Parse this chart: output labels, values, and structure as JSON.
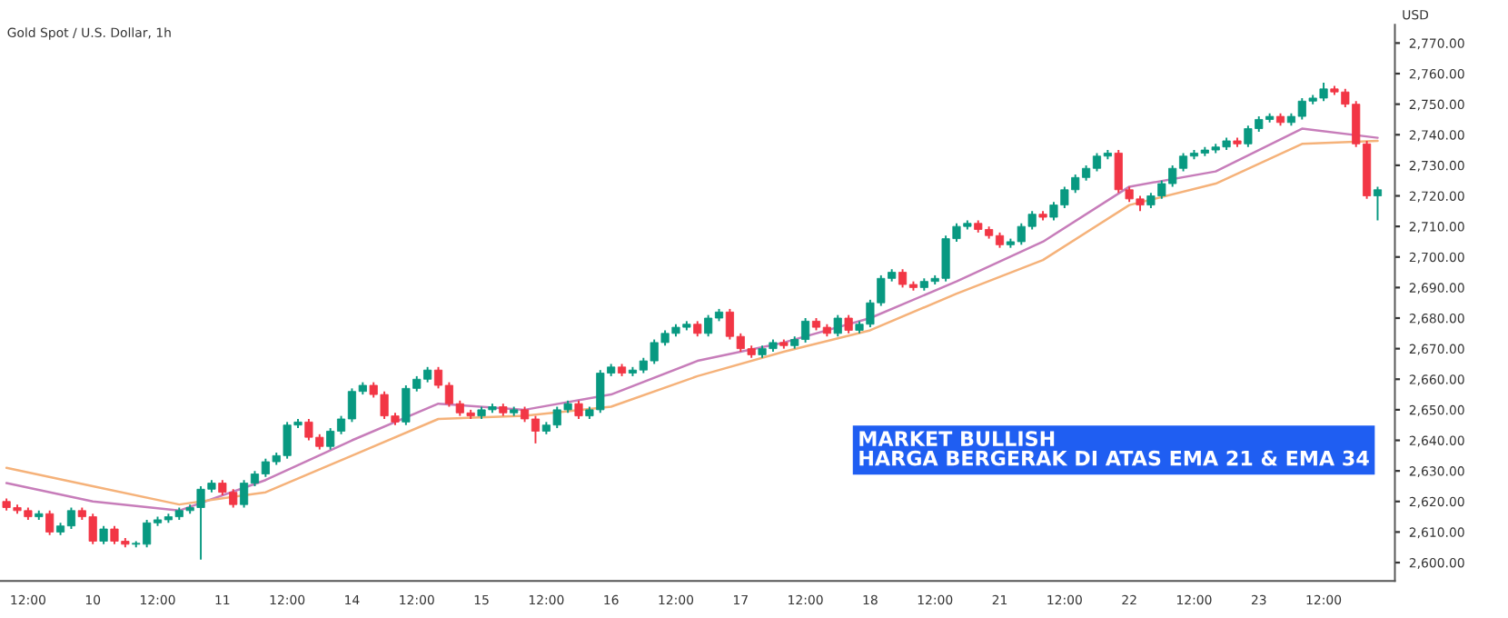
{
  "chart_data": {
    "type": "candlestick",
    "title": "Gold Spot / U.S. Dollar, 1h",
    "ylabel": "USD",
    "categories": [
      null,
      null,
      "12:00",
      null,
      null,
      null,
      null,
      null,
      "10",
      null,
      null,
      null,
      null,
      null,
      "12:00",
      null,
      null,
      null,
      null,
      null,
      "11",
      null,
      null,
      null,
      null,
      null,
      "12:00",
      null,
      null,
      null,
      null,
      null,
      "14",
      null,
      null,
      null,
      null,
      null,
      "12:00",
      null,
      null,
      null,
      null,
      null,
      "15",
      null,
      null,
      null,
      null,
      null,
      "12:00",
      null,
      null,
      null,
      null,
      null,
      "16",
      null,
      null,
      null,
      null,
      null,
      "12:00",
      null,
      null,
      null,
      null,
      null,
      "17",
      null,
      null,
      null,
      null,
      null,
      "12:00",
      null,
      null,
      null,
      null,
      null,
      "18",
      null,
      null,
      null,
      null,
      null,
      "12:00",
      null,
      null,
      null,
      null,
      null,
      "21",
      null,
      null,
      null,
      null,
      null,
      "12:00",
      null,
      null,
      null,
      null,
      null,
      "22",
      null,
      null,
      null,
      null,
      null,
      "12:00",
      null,
      null,
      null,
      null,
      null,
      "23",
      null,
      null,
      null,
      null,
      null,
      "12:00",
      null,
      null,
      null,
      null,
      null
    ],
    "ohlc": [
      [
        2620,
        2621,
        2617,
        2618
      ],
      [
        2618,
        2619,
        2616,
        2617
      ],
      [
        2617,
        2618,
        2614,
        2615
      ],
      [
        2615,
        2617,
        2614,
        2616
      ],
      [
        2616,
        2617,
        2609,
        2610
      ],
      [
        2610,
        2613,
        2609,
        2612
      ],
      [
        2612,
        2618,
        2611,
        2617
      ],
      [
        2617,
        2618,
        2614,
        2615
      ],
      [
        2615,
        2616,
        2606,
        2607
      ],
      [
        2607,
        2612,
        2606,
        2611
      ],
      [
        2611,
        2612,
        2606,
        2607
      ],
      [
        2607,
        2608,
        2605,
        2606
      ],
      [
        2606,
        2607,
        2605,
        2606
      ],
      [
        2606,
        2614,
        2605,
        2613
      ],
      [
        2613,
        2615,
        2612,
        2614
      ],
      [
        2614,
        2616,
        2613,
        2615
      ],
      [
        2615,
        2618,
        2614,
        2617
      ],
      [
        2617,
        2619,
        2616,
        2618
      ],
      [
        2618,
        2625,
        2601,
        2624
      ],
      [
        2624,
        2627,
        2623,
        2626
      ],
      [
        2626,
        2627,
        2622,
        2623
      ],
      [
        2623,
        2624,
        2618,
        2619
      ],
      [
        2619,
        2627,
        2618,
        2626
      ],
      [
        2626,
        2630,
        2625,
        2629
      ],
      [
        2629,
        2634,
        2628,
        2633
      ],
      [
        2633,
        2636,
        2632,
        2635
      ],
      [
        2635,
        2646,
        2634,
        2645
      ],
      [
        2645,
        2647,
        2644,
        2646
      ],
      [
        2646,
        2647,
        2640,
        2641
      ],
      [
        2641,
        2642,
        2637,
        2638
      ],
      [
        2638,
        2644,
        2637,
        2643
      ],
      [
        2643,
        2648,
        2642,
        2647
      ],
      [
        2647,
        2657,
        2646,
        2656
      ],
      [
        2656,
        2659,
        2655,
        2658
      ],
      [
        2658,
        2659,
        2654,
        2655
      ],
      [
        2655,
        2656,
        2647,
        2648
      ],
      [
        2648,
        2649,
        2645,
        2646
      ],
      [
        2646,
        2658,
        2645,
        2657
      ],
      [
        2657,
        2661,
        2656,
        2660
      ],
      [
        2660,
        2664,
        2659,
        2663
      ],
      [
        2663,
        2664,
        2657,
        2658
      ],
      [
        2658,
        2659,
        2651,
        2652
      ],
      [
        2652,
        2653,
        2648,
        2649
      ],
      [
        2649,
        2650,
        2647,
        2648
      ],
      [
        2648,
        2651,
        2647,
        2650
      ],
      [
        2650,
        2652,
        2649,
        2651
      ],
      [
        2651,
        2652,
        2648,
        2649
      ],
      [
        2649,
        2651,
        2648,
        2650
      ],
      [
        2650,
        2651,
        2646,
        2647
      ],
      [
        2647,
        2648,
        2639,
        2643
      ],
      [
        2643,
        2646,
        2642,
        2645
      ],
      [
        2645,
        2651,
        2644,
        2650
      ],
      [
        2650,
        2653,
        2649,
        2652
      ],
      [
        2652,
        2653,
        2647,
        2648
      ],
      [
        2648,
        2651,
        2647,
        2650
      ],
      [
        2650,
        2663,
        2649,
        2662
      ],
      [
        2662,
        2665,
        2661,
        2664
      ],
      [
        2664,
        2665,
        2661,
        2662
      ],
      [
        2662,
        2664,
        2661,
        2663
      ],
      [
        2663,
        2667,
        2662,
        2666
      ],
      [
        2666,
        2673,
        2665,
        2672
      ],
      [
        2672,
        2676,
        2671,
        2675
      ],
      [
        2675,
        2678,
        2674,
        2677
      ],
      [
        2677,
        2679,
        2676,
        2678
      ],
      [
        2678,
        2679,
        2674,
        2675
      ],
      [
        2675,
        2681,
        2674,
        2680
      ],
      [
        2680,
        2683,
        2679,
        2682
      ],
      [
        2682,
        2683,
        2673,
        2674
      ],
      [
        2674,
        2675,
        2669,
        2670
      ],
      [
        2670,
        2671,
        2667,
        2668
      ],
      [
        2668,
        2671,
        2667,
        2670
      ],
      [
        2670,
        2673,
        2669,
        2672
      ],
      [
        2672,
        2673,
        2670,
        2671
      ],
      [
        2671,
        2674,
        2670,
        2673
      ],
      [
        2673,
        2680,
        2672,
        2679
      ],
      [
        2679,
        2680,
        2676,
        2677
      ],
      [
        2677,
        2678,
        2674,
        2675
      ],
      [
        2675,
        2681,
        2674,
        2680
      ],
      [
        2680,
        2681,
        2675,
        2676
      ],
      [
        2676,
        2679,
        2675,
        2678
      ],
      [
        2678,
        2686,
        2677,
        2685
      ],
      [
        2685,
        2694,
        2684,
        2693
      ],
      [
        2693,
        2696,
        2692,
        2695
      ],
      [
        2695,
        2696,
        2690,
        2691
      ],
      [
        2691,
        2692,
        2689,
        2690
      ],
      [
        2690,
        2693,
        2689,
        2692
      ],
      [
        2692,
        2694,
        2691,
        2693
      ],
      [
        2693,
        2707,
        2692,
        2706
      ],
      [
        2706,
        2711,
        2705,
        2710
      ],
      [
        2710,
        2712,
        2709,
        2711
      ],
      [
        2711,
        2712,
        2708,
        2709
      ],
      [
        2709,
        2710,
        2706,
        2707
      ],
      [
        2707,
        2708,
        2703,
        2704
      ],
      [
        2704,
        2706,
        2703,
        2705
      ],
      [
        2705,
        2711,
        2704,
        2710
      ],
      [
        2710,
        2715,
        2709,
        2714
      ],
      [
        2714,
        2715,
        2712,
        2713
      ],
      [
        2713,
        2718,
        2712,
        2717
      ],
      [
        2717,
        2723,
        2716,
        2722
      ],
      [
        2722,
        2727,
        2721,
        2726
      ],
      [
        2726,
        2730,
        2725,
        2729
      ],
      [
        2729,
        2734,
        2728,
        2733
      ],
      [
        2733,
        2735,
        2732,
        2734
      ],
      [
        2734,
        2735,
        2721,
        2722
      ],
      [
        2722,
        2723,
        2718,
        2719
      ],
      [
        2719,
        2720,
        2715,
        2717
      ],
      [
        2717,
        2721,
        2716,
        2720
      ],
      [
        2720,
        2725,
        2719,
        2724
      ],
      [
        2724,
        2730,
        2723,
        2729
      ],
      [
        2729,
        2734,
        2728,
        2733
      ],
      [
        2733,
        2735,
        2732,
        2734
      ],
      [
        2734,
        2736,
        2733,
        2735
      ],
      [
        2735,
        2737,
        2734,
        2736
      ],
      [
        2736,
        2739,
        2735,
        2738
      ],
      [
        2738,
        2739,
        2736,
        2737
      ],
      [
        2737,
        2743,
        2736,
        2742
      ],
      [
        2742,
        2746,
        2741,
        2745
      ],
      [
        2745,
        2747,
        2744,
        2746
      ],
      [
        2746,
        2747,
        2743,
        2744
      ],
      [
        2744,
        2747,
        2743,
        2746
      ],
      [
        2746,
        2752,
        2745,
        2751
      ],
      [
        2751,
        2753,
        2750,
        2752
      ],
      [
        2752,
        2757,
        2751,
        2755
      ],
      [
        2755,
        2756,
        2753,
        2754
      ],
      [
        2754,
        2755,
        2749,
        2750
      ],
      [
        2750,
        2751,
        2736,
        2737
      ],
      [
        2737,
        2738,
        2719,
        2720
      ],
      [
        2720,
        2723,
        2712,
        2722
      ]
    ],
    "series": [
      {
        "type": "line",
        "color": "#c77dba",
        "values": [
          2626,
          null,
          null,
          null,
          null,
          null,
          null,
          null,
          2620,
          null,
          null,
          null,
          null,
          null,
          null,
          null,
          2617,
          null,
          null,
          null,
          null,
          null,
          null,
          null,
          2627,
          null,
          null,
          null,
          null,
          null,
          null,
          null,
          2640,
          null,
          null,
          null,
          null,
          null,
          null,
          null,
          2652,
          null,
          null,
          null,
          null,
          null,
          null,
          null,
          2650,
          null,
          null,
          null,
          null,
          null,
          null,
          null,
          2655,
          null,
          null,
          null,
          null,
          null,
          null,
          null,
          2666,
          null,
          null,
          null,
          null,
          null,
          null,
          null,
          2672,
          null,
          null,
          null,
          null,
          null,
          null,
          null,
          2680,
          null,
          null,
          null,
          null,
          null,
          null,
          null,
          2692,
          null,
          null,
          null,
          null,
          null,
          null,
          null,
          2705,
          null,
          null,
          null,
          null,
          null,
          null,
          null,
          2723,
          null,
          null,
          null,
          null,
          null,
          null,
          null,
          2728,
          null,
          null,
          null,
          null,
          null,
          null,
          null,
          2742,
          null,
          null,
          null,
          null,
          null,
          null,
          2739
        ]
      },
      {
        "type": "line",
        "color": "#f5b27a",
        "values": [
          2631,
          null,
          null,
          null,
          null,
          null,
          null,
          null,
          2625,
          null,
          null,
          null,
          null,
          null,
          null,
          null,
          2619,
          null,
          null,
          null,
          null,
          null,
          null,
          null,
          2623,
          null,
          null,
          null,
          null,
          null,
          null,
          null,
          2635,
          null,
          null,
          null,
          null,
          null,
          null,
          null,
          2647,
          null,
          null,
          null,
          null,
          null,
          null,
          null,
          2648,
          null,
          null,
          null,
          null,
          null,
          null,
          null,
          2651,
          null,
          null,
          null,
          null,
          null,
          null,
          null,
          2661,
          null,
          null,
          null,
          null,
          null,
          null,
          null,
          2669,
          null,
          null,
          null,
          null,
          null,
          null,
          null,
          2676,
          null,
          null,
          null,
          null,
          null,
          null,
          null,
          2688,
          null,
          null,
          null,
          null,
          null,
          null,
          null,
          2699,
          null,
          null,
          null,
          null,
          null,
          null,
          null,
          2717,
          null,
          null,
          null,
          null,
          null,
          null,
          null,
          2724,
          null,
          null,
          null,
          null,
          null,
          null,
          null,
          2737,
          null,
          null,
          null,
          null,
          null,
          null,
          2738
        ]
      }
    ],
    "ylim": [
      2594,
      2776
    ],
    "yticks": [
      {
        "value": 2600,
        "label": "2,600.00"
      },
      {
        "value": 2610,
        "label": "2,610.00"
      },
      {
        "value": 2620,
        "label": "2,620.00"
      },
      {
        "value": 2630,
        "label": "2,630.00"
      },
      {
        "value": 2640,
        "label": "2,640.00"
      },
      {
        "value": 2650,
        "label": "2,650.00"
      },
      {
        "value": 2660,
        "label": "2,660.00"
      },
      {
        "value": 2670,
        "label": "2,670.00"
      },
      {
        "value": 2680,
        "label": "2,680.00"
      },
      {
        "value": 2690,
        "label": "2,690.00"
      },
      {
        "value": 2700,
        "label": "2,700.00"
      },
      {
        "value": 2710,
        "label": "2,710.00"
      },
      {
        "value": 2720,
        "label": "2,720.00"
      },
      {
        "value": 2730,
        "label": "2,730.00"
      },
      {
        "value": 2740,
        "label": "2,740.00"
      },
      {
        "value": 2750,
        "label": "2,750.00"
      },
      {
        "value": 2760,
        "label": "2,760.00"
      },
      {
        "value": 2770,
        "label": "2,770.00"
      }
    ],
    "annotations": [
      "MARKET BULLISH\nHARGA BERGERAK DI ATAS EMA 21 & EMA 34"
    ]
  }
}
